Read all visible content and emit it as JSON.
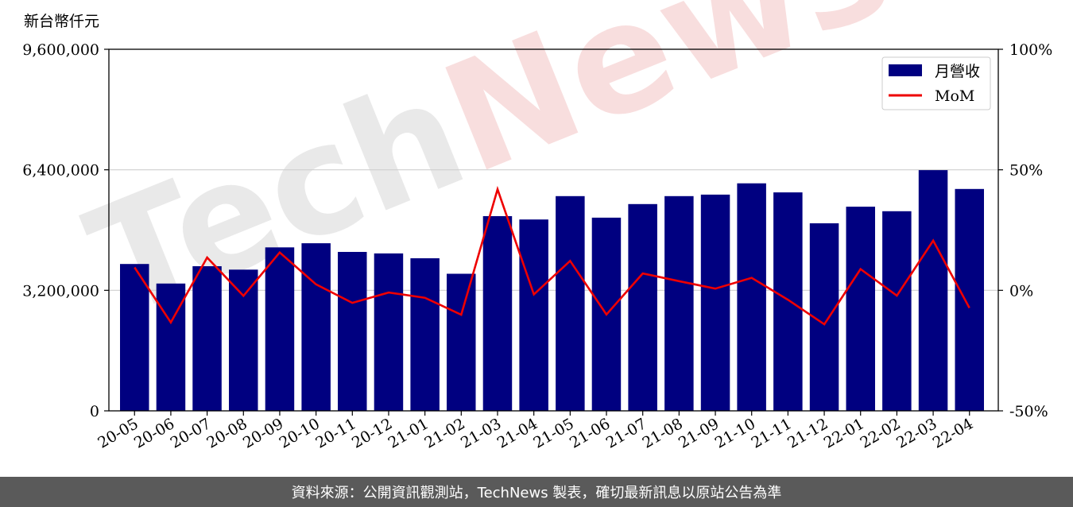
{
  "chart_data": {
    "type": "bar",
    "y_unit_label": "新台幣仟元",
    "categories": [
      "20-05",
      "20-06",
      "20-07",
      "20-08",
      "20-09",
      "20-10",
      "20-11",
      "20-12",
      "21-01",
      "21-02",
      "21-03",
      "21-04",
      "21-05",
      "21-06",
      "21-07",
      "21-08",
      "21-09",
      "21-10",
      "21-11",
      "21-12",
      "22-01",
      "22-02",
      "22-03",
      "22-04"
    ],
    "series": [
      {
        "name": "月營收",
        "type": "bar",
        "axis": "left",
        "color": "#000080",
        "values": [
          3900000,
          3380000,
          3840000,
          3750000,
          4340000,
          4450000,
          4220000,
          4180000,
          4050000,
          3640000,
          5170000,
          5080000,
          5700000,
          5130000,
          5490000,
          5700000,
          5740000,
          6040000,
          5800000,
          4980000,
          5420000,
          5300000,
          6390000,
          5890000
        ]
      },
      {
        "name": "MoM",
        "type": "line",
        "axis": "right",
        "color": "#ee0000",
        "values": [
          9.5,
          -13.3,
          13.6,
          -2.3,
          15.7,
          2.5,
          -5.2,
          -0.9,
          -3.1,
          -10.1,
          41.9,
          -1.7,
          12.2,
          -10.0,
          7.0,
          3.8,
          0.7,
          5.2,
          -3.9,
          -14.1,
          8.8,
          -2.2,
          20.6,
          -7.3
        ]
      }
    ],
    "y_left": {
      "min": 0,
      "max": 9600000,
      "ticks": [
        0,
        3200000,
        6400000,
        9600000
      ],
      "tick_labels": [
        "0",
        "3,200,000",
        "6,400,000",
        "9,600,000"
      ]
    },
    "y_right": {
      "min": -50,
      "max": 100,
      "ticks": [
        -50,
        0,
        50,
        100
      ],
      "tick_labels": [
        "-50%",
        "0%",
        "50%",
        "100%"
      ]
    },
    "grid": "horizontal",
    "legend": "top-right"
  },
  "watermark": {
    "text": "TechNews",
    "colors": [
      "#d8d8d8",
      "#f4c4c4"
    ]
  },
  "footer": {
    "text": "資料來源：公開資訊觀測站，TechNews 製表，確切最新訊息以原站公告為準"
  }
}
